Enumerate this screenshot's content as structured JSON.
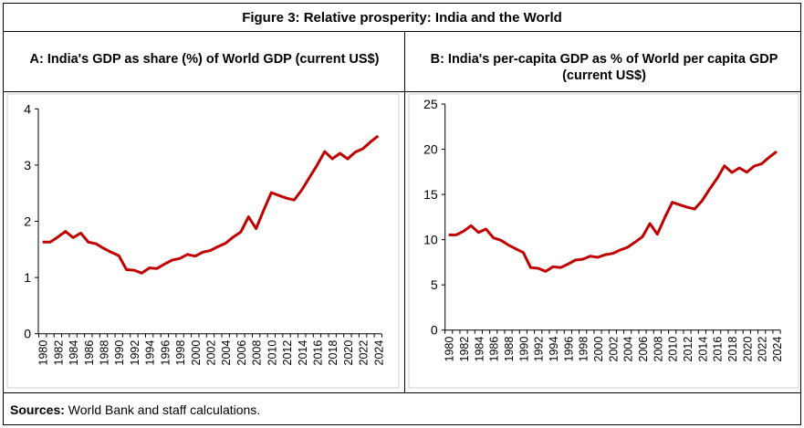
{
  "figure_title": "Figure 3: Relative prosperity: India and the World",
  "sources_label": "Sources:",
  "sources_text": " World Bank and staff calculations.",
  "line_color": "#C00000",
  "chart_data": [
    {
      "type": "line",
      "title": "A: India's GDP as share (%) of World GDP (current US$)",
      "xlabel": "",
      "ylabel": "",
      "ylim": [
        0,
        4
      ],
      "yticks": [
        0,
        1,
        2,
        3,
        4
      ],
      "grid": false,
      "x": [
        1980,
        1981,
        1982,
        1983,
        1984,
        1985,
        1986,
        1987,
        1988,
        1989,
        1990,
        1991,
        1992,
        1993,
        1994,
        1995,
        1996,
        1997,
        1998,
        1999,
        2000,
        2001,
        2002,
        2003,
        2004,
        2005,
        2006,
        2007,
        2008,
        2009,
        2010,
        2011,
        2012,
        2013,
        2014,
        2015,
        2016,
        2017,
        2018,
        2019,
        2020,
        2021,
        2022,
        2023,
        2024
      ],
      "xtick_labels": [
        "1980",
        "1982",
        "1984",
        "1986",
        "1988",
        "1990",
        "1992",
        "1994",
        "1996",
        "1998",
        "2000",
        "2002",
        "2004",
        "2006",
        "2008",
        "2010",
        "2012",
        "2014",
        "2016",
        "2018",
        "2020",
        "2022",
        "2024"
      ],
      "values": [
        1.63,
        1.63,
        1.72,
        1.82,
        1.71,
        1.79,
        1.63,
        1.6,
        1.52,
        1.45,
        1.39,
        1.14,
        1.13,
        1.08,
        1.17,
        1.16,
        1.24,
        1.31,
        1.34,
        1.41,
        1.38,
        1.45,
        1.48,
        1.55,
        1.61,
        1.72,
        1.81,
        2.08,
        1.87,
        2.2,
        2.51,
        2.46,
        2.41,
        2.38,
        2.56,
        2.78,
        3.0,
        3.24,
        3.11,
        3.21,
        3.11,
        3.23,
        3.29,
        3.41,
        3.52
      ]
    },
    {
      "type": "line",
      "title": "B: India's per-capita GDP as % of World per capita GDP (current US$)",
      "xlabel": "",
      "ylabel": "",
      "ylim": [
        0,
        25
      ],
      "yticks": [
        0,
        5,
        10,
        15,
        20,
        25
      ],
      "grid": false,
      "x": [
        1980,
        1981,
        1982,
        1983,
        1984,
        1985,
        1986,
        1987,
        1988,
        1989,
        1990,
        1991,
        1992,
        1993,
        1994,
        1995,
        1996,
        1997,
        1998,
        1999,
        2000,
        2001,
        2002,
        2003,
        2004,
        2005,
        2006,
        2007,
        2008,
        2009,
        2010,
        2011,
        2012,
        2013,
        2014,
        2015,
        2016,
        2017,
        2018,
        2019,
        2020,
        2021,
        2022,
        2023,
        2024
      ],
      "xtick_labels": [
        "1980",
        "1982",
        "1984",
        "1986",
        "1988",
        "1990",
        "1992",
        "1994",
        "1996",
        "1998",
        "2000",
        "2002",
        "2004",
        "2006",
        "2008",
        "2010",
        "2012",
        "2014",
        "2016",
        "2018",
        "2020",
        "2022",
        "2024"
      ],
      "values": [
        10.53,
        10.53,
        10.94,
        11.54,
        10.8,
        11.17,
        10.2,
        9.93,
        9.42,
        8.98,
        8.58,
        6.9,
        6.83,
        6.49,
        7.0,
        6.9,
        7.3,
        7.74,
        7.84,
        8.18,
        8.04,
        8.34,
        8.48,
        8.85,
        9.15,
        9.72,
        10.33,
        11.78,
        10.6,
        12.45,
        14.13,
        13.86,
        13.59,
        13.39,
        14.3,
        15.58,
        16.76,
        18.17,
        17.43,
        17.93,
        17.46,
        18.14,
        18.4,
        19.11,
        19.75
      ]
    }
  ]
}
